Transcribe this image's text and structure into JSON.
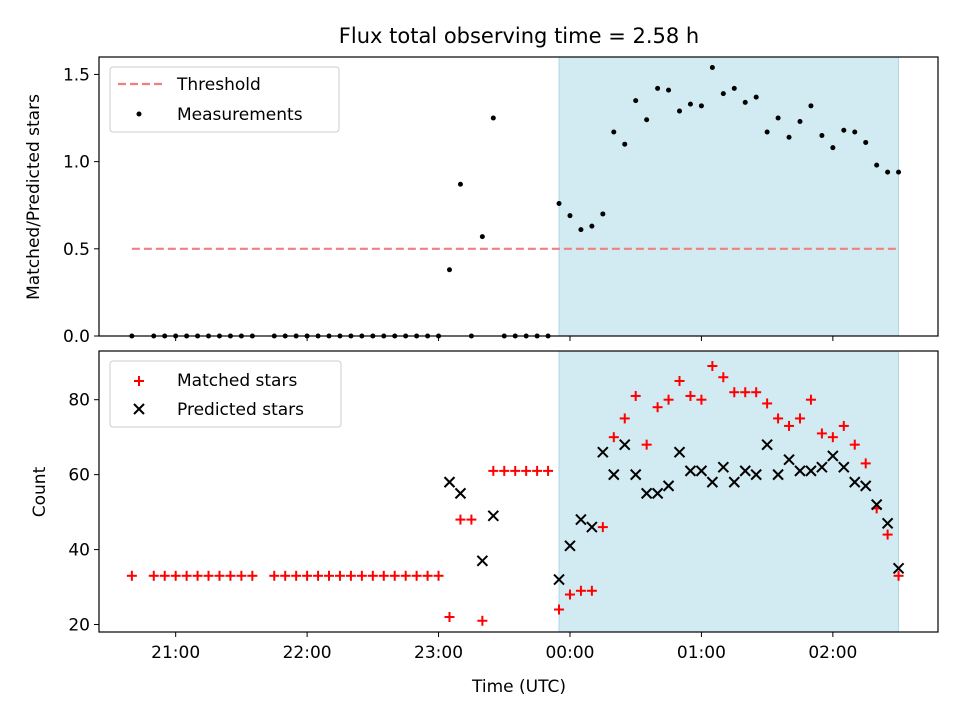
{
  "title": "Flux total observing time = 2.58 h",
  "colors": {
    "threshold": "#f08080",
    "matched": "#ff0000",
    "predicted": "#000000",
    "measurement": "#000000",
    "shade": "#add8e6"
  },
  "chart_data": [
    {
      "type": "scatter",
      "ylabel": "Matched/Predicted stars",
      "ylim": [
        0,
        1.6
      ],
      "yticks": [
        0.0,
        0.5,
        1.0,
        1.5
      ],
      "ytick_labels": [
        "0.0",
        "0.5",
        "1.0",
        "1.5"
      ],
      "legend_position": "top-left",
      "legend": [
        "Threshold",
        "Measurements"
      ],
      "shaded_interval": [
        "23:55",
        "02:30"
      ],
      "threshold": {
        "name": "Threshold",
        "y": 0.5,
        "x_range": [
          "20:40",
          "02:30"
        ]
      },
      "series": [
        {
          "name": "Measurements",
          "x": [
            "20:40",
            "20:50",
            "20:55",
            "21:00",
            "21:05",
            "21:10",
            "21:15",
            "21:20",
            "21:25",
            "21:30",
            "21:35",
            "21:45",
            "21:50",
            "21:55",
            "22:00",
            "22:05",
            "22:10",
            "22:15",
            "22:20",
            "22:25",
            "22:30",
            "22:35",
            "22:40",
            "22:45",
            "22:50",
            "22:55",
            "23:00",
            "23:05",
            "23:10",
            "23:15",
            "23:20",
            "23:25",
            "23:30",
            "23:35",
            "23:40",
            "23:45",
            "23:50",
            "23:55",
            "00:00",
            "00:05",
            "00:10",
            "00:15",
            "00:20",
            "00:25",
            "00:30",
            "00:35",
            "00:40",
            "00:45",
            "00:50",
            "00:55",
            "01:00",
            "01:05",
            "01:10",
            "01:15",
            "01:20",
            "01:25",
            "01:30",
            "01:35",
            "01:40",
            "01:45",
            "01:50",
            "01:55",
            "02:00",
            "02:05",
            "02:10",
            "02:15",
            "02:20",
            "02:25",
            "02:30"
          ],
          "y": [
            0,
            0,
            0,
            0,
            0,
            0,
            0,
            0,
            0,
            0,
            0,
            0,
            0,
            0,
            0,
            0,
            0,
            0,
            0,
            0,
            0,
            0,
            0,
            0,
            0,
            0,
            0,
            0.38,
            0.87,
            0,
            0.57,
            1.25,
            0,
            0,
            0,
            0,
            0,
            0.76,
            0.69,
            0.61,
            0.63,
            0.7,
            1.17,
            1.1,
            1.35,
            1.24,
            1.42,
            1.41,
            1.29,
            1.33,
            1.32,
            1.54,
            1.39,
            1.42,
            1.34,
            1.37,
            1.17,
            1.25,
            1.14,
            1.23,
            1.32,
            1.15,
            1.08,
            1.18,
            1.17,
            1.11,
            0.98,
            0.94,
            0.94
          ]
        }
      ]
    },
    {
      "type": "scatter",
      "ylabel": "Count",
      "xlabel": "Time (UTC)",
      "ylim": [
        18,
        93
      ],
      "yticks": [
        20,
        40,
        60,
        80
      ],
      "ytick_labels": [
        "20",
        "40",
        "60",
        "80"
      ],
      "xticks": [
        "21:00",
        "22:00",
        "23:00",
        "00:00",
        "01:00",
        "02:00"
      ],
      "xlim": [
        "20:25",
        "02:48"
      ],
      "legend_position": "top-left",
      "legend": [
        "Matched stars",
        "Predicted stars"
      ],
      "shaded_interval": [
        "23:55",
        "02:30"
      ],
      "series": [
        {
          "name": "Matched stars",
          "x": [
            "20:40",
            "20:50",
            "20:55",
            "21:00",
            "21:05",
            "21:10",
            "21:15",
            "21:20",
            "21:25",
            "21:30",
            "21:35",
            "21:45",
            "21:50",
            "21:55",
            "22:00",
            "22:05",
            "22:10",
            "22:15",
            "22:20",
            "22:25",
            "22:30",
            "22:35",
            "22:40",
            "22:45",
            "22:50",
            "22:55",
            "23:00",
            "23:05",
            "23:10",
            "23:15",
            "23:20",
            "23:25",
            "23:30",
            "23:35",
            "23:40",
            "23:45",
            "23:50",
            "23:55",
            "00:00",
            "00:05",
            "00:10",
            "00:15",
            "00:20",
            "00:25",
            "00:30",
            "00:35",
            "00:40",
            "00:45",
            "00:50",
            "00:55",
            "01:00",
            "01:05",
            "01:10",
            "01:15",
            "01:20",
            "01:25",
            "01:30",
            "01:35",
            "01:40",
            "01:45",
            "01:50",
            "01:55",
            "02:00",
            "02:05",
            "02:10",
            "02:15",
            "02:20",
            "02:25",
            "02:30"
          ],
          "y": [
            33,
            33,
            33,
            33,
            33,
            33,
            33,
            33,
            33,
            33,
            33,
            33,
            33,
            33,
            33,
            33,
            33,
            33,
            33,
            33,
            33,
            33,
            33,
            33,
            33,
            33,
            33,
            22,
            48,
            48,
            21,
            61,
            61,
            61,
            61,
            61,
            61,
            24,
            28,
            29,
            29,
            46,
            70,
            75,
            81,
            68,
            78,
            80,
            85,
            81,
            80,
            89,
            86,
            82,
            82,
            82,
            79,
            75,
            73,
            75,
            80,
            71,
            70,
            73,
            68,
            63,
            51,
            44,
            33
          ]
        },
        {
          "name": "Predicted stars",
          "x": [
            "23:05",
            "23:10",
            "23:20",
            "23:25",
            "23:55",
            "00:00",
            "00:05",
            "00:10",
            "00:15",
            "00:20",
            "00:25",
            "00:30",
            "00:35",
            "00:40",
            "00:45",
            "00:50",
            "00:55",
            "01:00",
            "01:05",
            "01:10",
            "01:15",
            "01:20",
            "01:25",
            "01:30",
            "01:35",
            "01:40",
            "01:45",
            "01:50",
            "01:55",
            "02:00",
            "02:05",
            "02:10",
            "02:15",
            "02:20",
            "02:25",
            "02:30"
          ],
          "y": [
            58,
            55,
            37,
            49,
            32,
            41,
            48,
            46,
            66,
            60,
            68,
            60,
            55,
            55,
            57,
            66,
            61,
            61,
            58,
            62,
            58,
            61,
            60,
            68,
            60,
            64,
            61,
            61,
            62,
            65,
            62,
            58,
            57,
            52,
            47,
            35
          ]
        }
      ]
    }
  ]
}
